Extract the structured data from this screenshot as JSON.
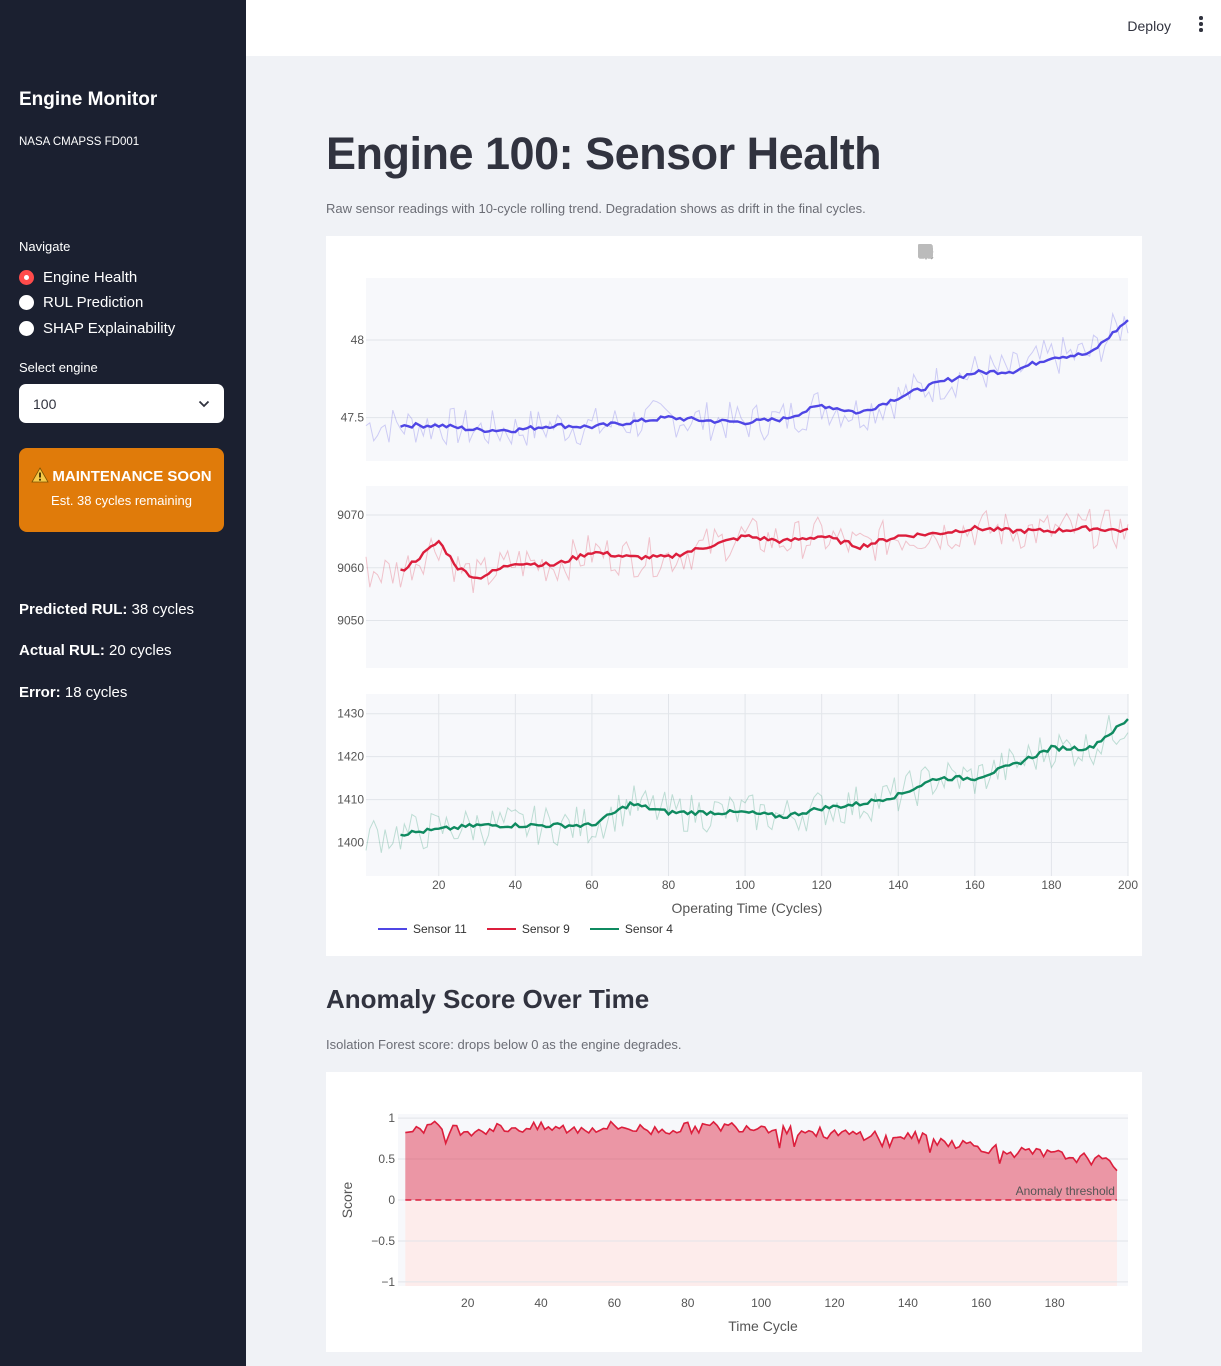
{
  "app": {
    "deploy_label": "Deploy",
    "menu_icon": "kebab-menu-icon"
  },
  "sidebar": {
    "title": "Engine Monitor",
    "subtitle": "NASA CMAPSS FD001",
    "nav_label": "Navigate",
    "nav_items": [
      {
        "label": "Engine Health",
        "selected": true
      },
      {
        "label": "RUL Prediction",
        "selected": false
      },
      {
        "label": "SHAP Explainability",
        "selected": false
      }
    ],
    "select_label": "Select engine",
    "select_value": "100",
    "alert": {
      "title": "MAINTENANCE SOON",
      "subtitle": "Est. 38 cycles remaining",
      "icon": "warning-icon",
      "color": "#e07b0a"
    },
    "metrics": [
      {
        "label": "Predicted RUL:",
        "value": "38 cycles"
      },
      {
        "label": "Actual RUL:",
        "value": "20 cycles"
      },
      {
        "label": "Error:",
        "value": "18 cycles"
      }
    ]
  },
  "main": {
    "title": "Engine 100: Sensor Health",
    "caption": "Raw sensor readings with 10-cycle rolling trend. Degradation shows as drift in the final cycles.",
    "anomaly_title": "Anomaly Score Over Time",
    "anomaly_caption": "Isolation Forest score: drops below 0 as the engine degrades."
  },
  "chart_data": [
    {
      "type": "line",
      "xlabel": "Operating Time (Cycles)",
      "x_range": [
        1,
        200
      ],
      "x_ticks": [
        20,
        40,
        60,
        80,
        100,
        120,
        140,
        160,
        180,
        200
      ],
      "legend": "bottom-left",
      "series": [
        {
          "name": "Sensor 11",
          "color": "#4f46e5",
          "y_ticks": [
            47.5,
            48
          ],
          "y_range": [
            47.22,
            48.4
          ],
          "trend_x": [
            10,
            20,
            30,
            40,
            50,
            60,
            70,
            80,
            90,
            100,
            110,
            120,
            130,
            140,
            150,
            160,
            170,
            180,
            190,
            200
          ],
          "trend_y": [
            47.45,
            47.45,
            47.42,
            47.42,
            47.45,
            47.44,
            47.47,
            47.5,
            47.48,
            47.47,
            47.49,
            47.58,
            47.53,
            47.63,
            47.72,
            47.79,
            47.8,
            47.89,
            47.91,
            48.13
          ]
        },
        {
          "name": "Sensor 9",
          "color": "#dc1e3c",
          "y_ticks": [
            9050,
            9060,
            9070
          ],
          "y_range": [
            9041.0,
            9075.5
          ],
          "trend_x": [
            10,
            15,
            20,
            25,
            30,
            35,
            40,
            50,
            60,
            70,
            80,
            90,
            100,
            110,
            120,
            130,
            140,
            150,
            160,
            170,
            180,
            190,
            200
          ],
          "trend_y": [
            9059.3,
            9062.0,
            9065.0,
            9060.0,
            9058.0,
            9059.5,
            9061.0,
            9060.5,
            9063.0,
            9062.0,
            9062.0,
            9064.0,
            9066.0,
            9065.0,
            9066.0,
            9064.0,
            9066.0,
            9066.5,
            9067.5,
            9067.0,
            9067.0,
            9067.5,
            9067.0
          ]
        },
        {
          "name": "Sensor 4",
          "color": "#0f8a60",
          "y_ticks": [
            1400,
            1410,
            1420,
            1430
          ],
          "y_range": [
            1392.2,
            1434.6
          ],
          "trend_x": [
            10,
            20,
            30,
            40,
            50,
            60,
            70,
            80,
            90,
            100,
            110,
            120,
            130,
            140,
            150,
            160,
            170,
            180,
            190,
            200
          ],
          "trend_y": [
            1402.0,
            1403.0,
            1404.0,
            1404.0,
            1404.0,
            1404.0,
            1409.0,
            1407.0,
            1407.0,
            1407.0,
            1406.0,
            1408.0,
            1409.0,
            1411.0,
            1415.0,
            1415.0,
            1418.0,
            1422.0,
            1422.0,
            1428.5
          ]
        }
      ]
    },
    {
      "type": "area",
      "xlabel": "Time Cycle",
      "ylabel": "Score",
      "x_range": [
        1,
        200
      ],
      "x_ticks": [
        20,
        40,
        60,
        80,
        100,
        120,
        140,
        160,
        180
      ],
      "ylim": [
        -1.05,
        1.05
      ],
      "y_ticks": [
        -1,
        -0.5,
        0,
        0.5,
        1
      ],
      "y_tick_labels": [
        "−1",
        "−0.5",
        "0",
        "0.5",
        "1"
      ],
      "threshold": {
        "value": 0,
        "label": "Anomaly threshold"
      },
      "color": "#dc1e3c",
      "x": [
        3,
        10,
        20,
        30,
        40,
        50,
        60,
        70,
        80,
        90,
        100,
        110,
        120,
        130,
        140,
        150,
        160,
        170,
        180,
        190,
        197
      ],
      "y": [
        0.85,
        0.9,
        0.85,
        0.88,
        0.88,
        0.86,
        0.9,
        0.85,
        0.88,
        0.9,
        0.9,
        0.85,
        0.8,
        0.8,
        0.78,
        0.72,
        0.65,
        0.58,
        0.55,
        0.5,
        0.42
      ]
    }
  ]
}
